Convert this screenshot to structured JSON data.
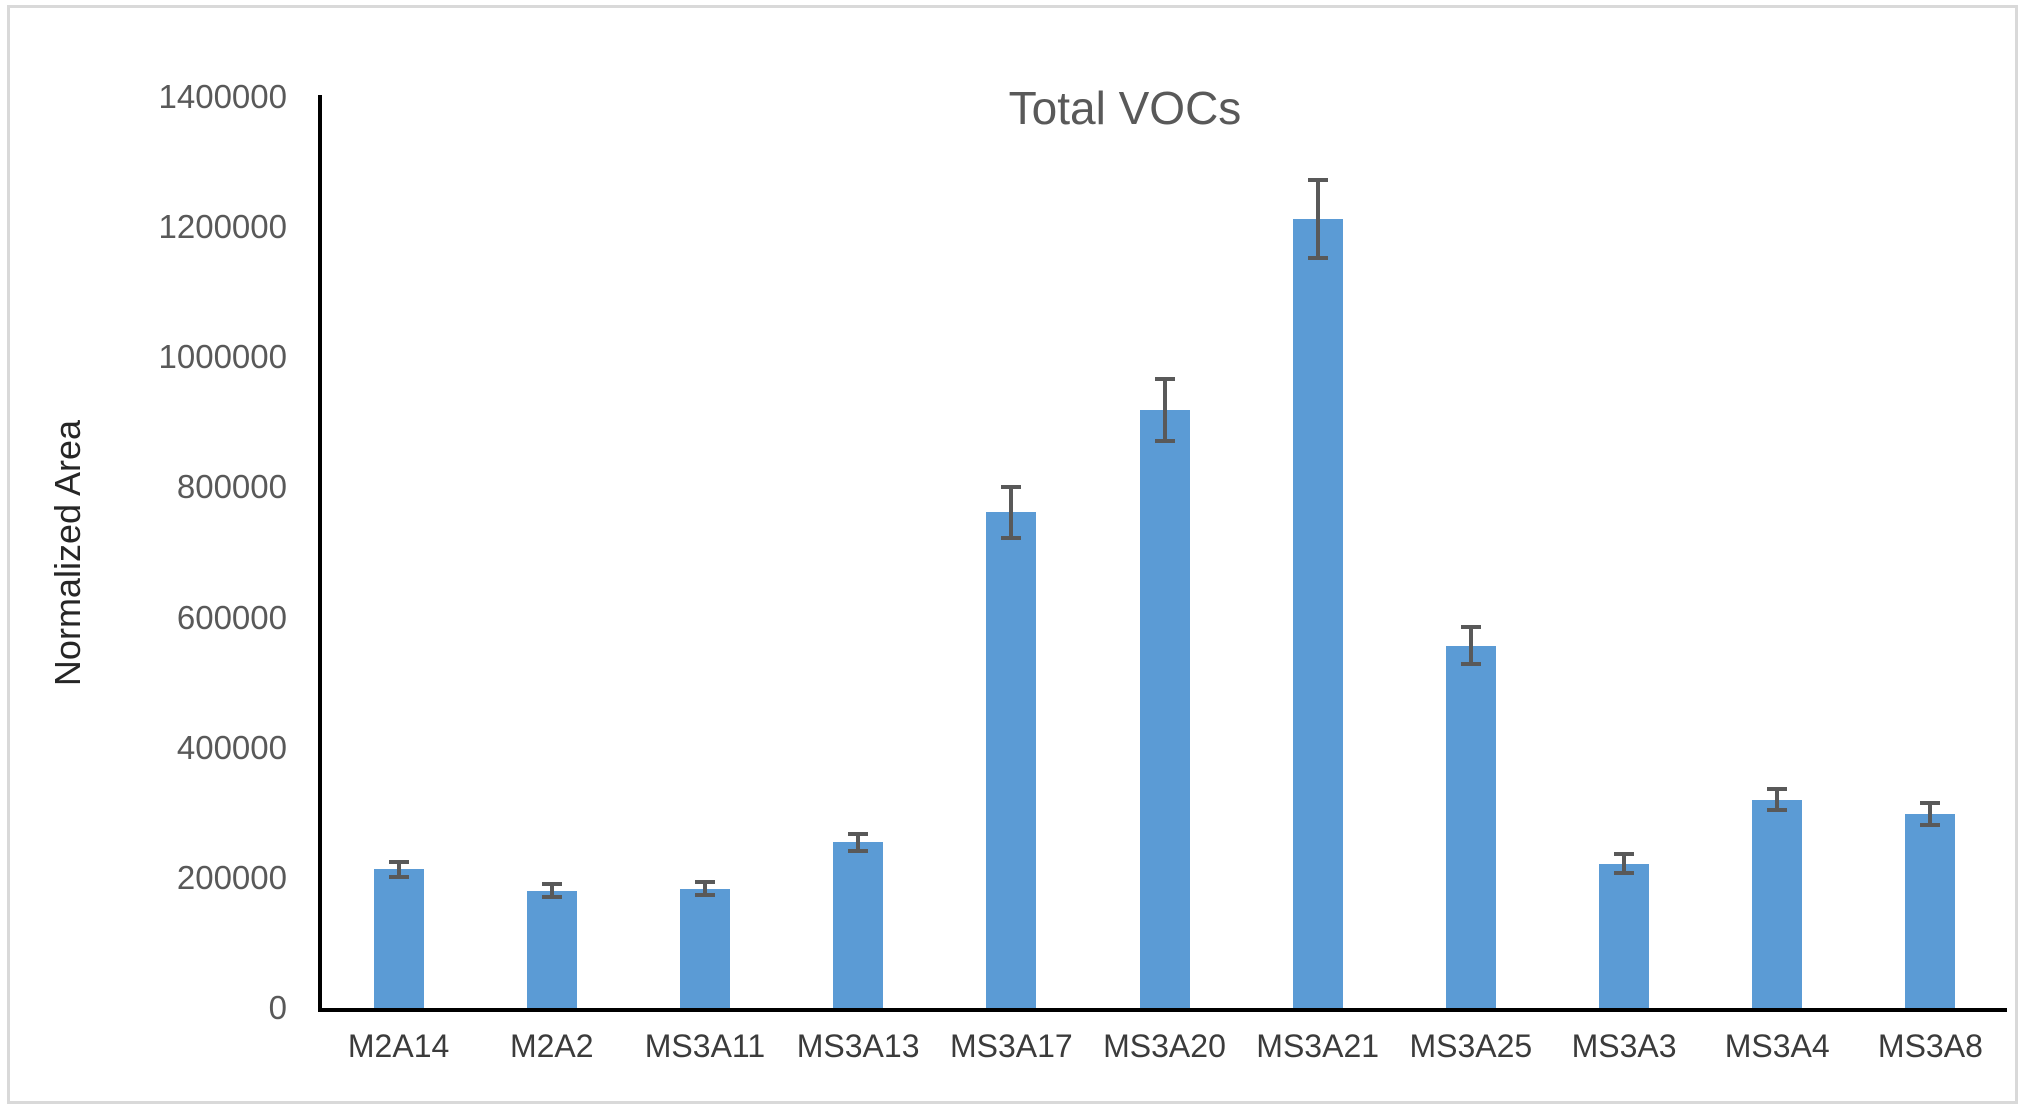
{
  "chart_data": {
    "type": "bar",
    "title": "Total VOCs",
    "xlabel": "",
    "ylabel": "Normalized Area",
    "categories": [
      "M2A14",
      "M2A2",
      "MS3A11",
      "MS3A13",
      "MS3A17",
      "MS3A20",
      "MS3A21",
      "MS3A25",
      "MS3A3",
      "MS3A4",
      "MS3A8"
    ],
    "series": [
      {
        "name": "Total VOCs",
        "values": [
          213000,
          180000,
          183000,
          255000,
          762000,
          919000,
          1212000,
          557000,
          222000,
          320000,
          298000
        ],
        "error_bars": [
          12000,
          10000,
          10000,
          13000,
          39000,
          47000,
          60000,
          29000,
          14000,
          16000,
          17000
        ]
      }
    ],
    "ylim": [
      0,
      1400000
    ],
    "yticks": [
      0,
      200000,
      400000,
      600000,
      800000,
      1000000,
      1200000,
      1400000
    ],
    "grid": false,
    "legend": "none",
    "colors": {
      "bar": "#5B9BD5",
      "error": "#595959",
      "axis": "#000000",
      "title": "#595959",
      "ytick": "#595959",
      "xtick": "#3b3b3b",
      "ylabeltext": "#262626",
      "border": "#d9d9d9"
    }
  }
}
